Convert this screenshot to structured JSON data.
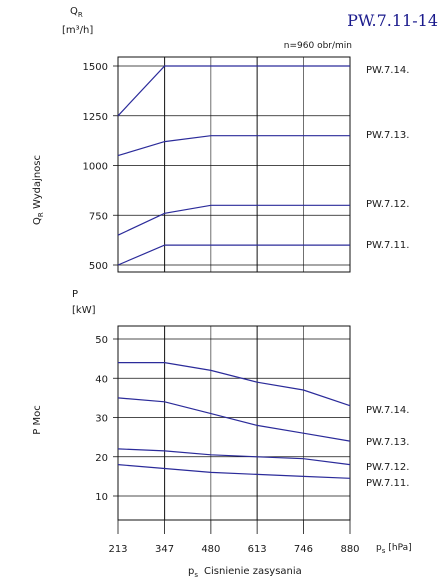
{
  "header": {
    "code": "PW.7.11-14",
    "speed_note": "n=960 obr/min"
  },
  "colors": {
    "axis": "#111111",
    "curve": "#2b2b9a",
    "code": "#1a1a8c"
  },
  "chart_data": [
    {
      "type": "line",
      "y_symbol": "Q",
      "y_symbol_sub": "R",
      "y_unit": "[m³/h]",
      "ylabel_main": "Q",
      "ylabel_sub": "R",
      "ylabel_rest": " Wydajnosc",
      "ylim": [
        500,
        1500
      ],
      "yticks": [
        500,
        750,
        1000,
        1250,
        1500
      ],
      "grid": true,
      "series": [
        {
          "name": "PW.7.14.",
          "x": [
            213,
            347,
            480,
            613,
            746,
            880
          ],
          "values": [
            1250,
            1500,
            1500,
            1500,
            1500,
            1500
          ]
        },
        {
          "name": "PW.7.13.",
          "x": [
            213,
            347,
            480,
            613,
            746,
            880
          ],
          "values": [
            1050,
            1120,
            1150,
            1150,
            1150,
            1150
          ]
        },
        {
          "name": "PW.7.12.",
          "x": [
            213,
            347,
            480,
            613,
            746,
            880
          ],
          "values": [
            650,
            760,
            800,
            800,
            800,
            800
          ]
        },
        {
          "name": "PW.7.11.",
          "x": [
            213,
            347,
            480,
            613,
            746,
            880
          ],
          "values": [
            500,
            600,
            600,
            600,
            600,
            600
          ]
        }
      ]
    },
    {
      "type": "line",
      "y_symbol": "P",
      "y_unit": "[kW]",
      "ylabel_main": "P  Moc",
      "ylim": [
        10,
        50
      ],
      "yticks": [
        10,
        20,
        30,
        40,
        50
      ],
      "xticks": [
        213,
        347,
        480,
        613,
        746,
        880
      ],
      "xlabel_symbol": "p",
      "xlabel_sub": "s",
      "xlabel_text": "Cisnienie zasysania",
      "x_unit": "[hPa]",
      "grid": true,
      "series": [
        {
          "name": "PW.7.14.",
          "x": [
            213,
            347,
            480,
            613,
            746,
            880
          ],
          "values": [
            44,
            44,
            42,
            39,
            37,
            33
          ]
        },
        {
          "name": "PW.7.13.",
          "x": [
            213,
            347,
            480,
            613,
            746,
            880
          ],
          "values": [
            35,
            34,
            31,
            28,
            26,
            24
          ]
        },
        {
          "name": "PW.7.12.",
          "x": [
            213,
            347,
            480,
            613,
            746,
            880
          ],
          "values": [
            22,
            21.5,
            20.5,
            20,
            19.5,
            18
          ]
        },
        {
          "name": "PW.7.11.",
          "x": [
            213,
            347,
            480,
            613,
            746,
            880
          ],
          "values": [
            18,
            17,
            16,
            15.5,
            15,
            14.5
          ]
        }
      ]
    }
  ]
}
